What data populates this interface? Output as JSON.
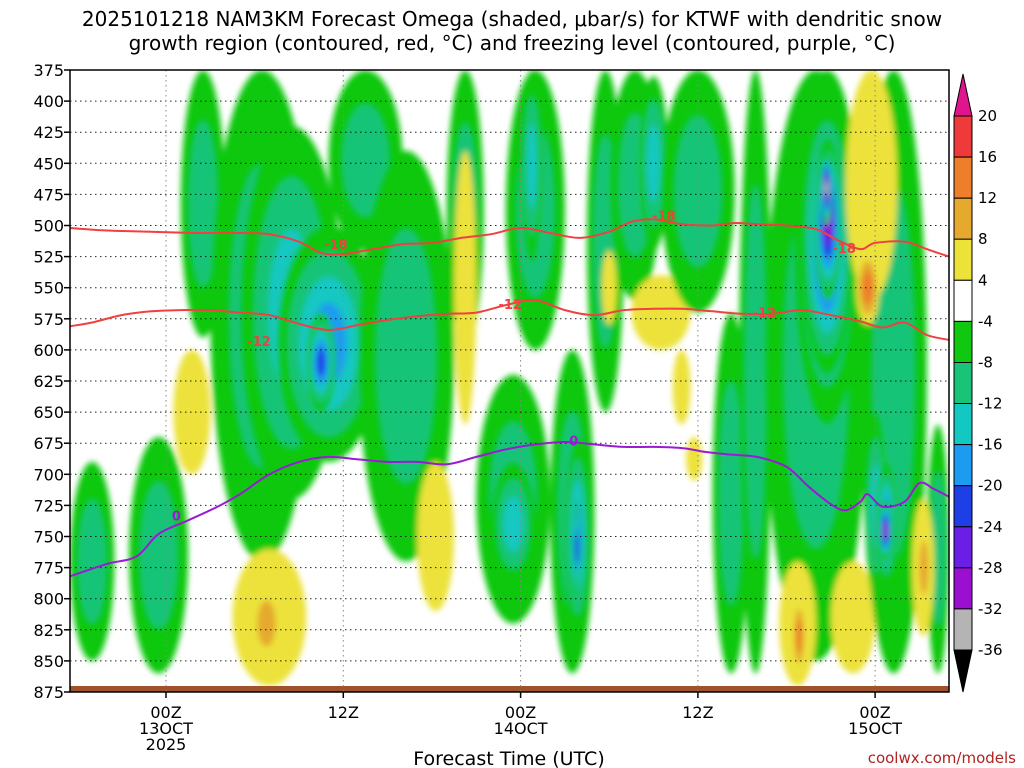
{
  "chart_data": {
    "type": "heatmap",
    "title_line1": "2025101218 NAM3KM Forecast Omega (shaded, μbar/s) for KTWF with dendritic snow",
    "title_line2": "growth region (contoured, red, °C) and freezing level (contoured, purple, °C)",
    "xlabel": "Forecast Time (UTC)",
    "credit": "coolwx.com/models",
    "x_range_hours": [
      -6.5,
      53
    ],
    "y_range_hpa": [
      375,
      875
    ],
    "y_ticks": [
      375,
      400,
      425,
      450,
      475,
      500,
      525,
      550,
      575,
      600,
      625,
      650,
      675,
      700,
      725,
      750,
      775,
      800,
      825,
      850,
      875
    ],
    "x_ticks": [
      {
        "hour": 0,
        "lines": [
          "00Z",
          "13OCT",
          "2025"
        ]
      },
      {
        "hour": 12,
        "lines": [
          "12Z"
        ]
      },
      {
        "hour": 24,
        "lines": [
          "00Z",
          "14OCT"
        ]
      },
      {
        "hour": 36,
        "lines": [
          "12Z"
        ]
      },
      {
        "hour": 48,
        "lines": [
          "00Z",
          "15OCT"
        ]
      }
    ],
    "colorbar": {
      "label_values": [
        20,
        16,
        12,
        8,
        4,
        -4,
        -8,
        -12,
        -16,
        -20,
        -24,
        -28,
        -32,
        -36
      ],
      "bins": [
        {
          "lo": 20,
          "hi": 24,
          "color": "#e0148c"
        },
        {
          "lo": 16,
          "hi": 20,
          "color": "#ee3a3a"
        },
        {
          "lo": 12,
          "hi": 16,
          "color": "#ed7f2a"
        },
        {
          "lo": 8,
          "hi": 12,
          "color": "#e5a92d"
        },
        {
          "lo": 4,
          "hi": 8,
          "color": "#ece23a"
        },
        {
          "lo": -4,
          "hi": 4,
          "color": "#ffffff"
        },
        {
          "lo": -8,
          "hi": -4,
          "color": "#11c811"
        },
        {
          "lo": -12,
          "hi": -8,
          "color": "#19c478"
        },
        {
          "lo": -16,
          "hi": -12,
          "color": "#13c7c2"
        },
        {
          "lo": -20,
          "hi": -16,
          "color": "#1c9cf0"
        },
        {
          "lo": -24,
          "hi": -20,
          "color": "#1e3ee6"
        },
        {
          "lo": -28,
          "hi": -24,
          "color": "#6a1ee6"
        },
        {
          "lo": -32,
          "hi": -28,
          "color": "#9b10d0"
        },
        {
          "lo": -36,
          "hi": -32,
          "color": "#b4b4b4"
        },
        {
          "lo": -40,
          "hi": -36,
          "color": "#000000"
        }
      ]
    },
    "omega_features": [
      {
        "t0": -6.5,
        "t1": -3.5,
        "p0": 690,
        "p1": 850,
        "min": -10
      },
      {
        "t0": -2.5,
        "t1": 1.5,
        "p0": 670,
        "p1": 860,
        "min": -9
      },
      {
        "t0": 0.5,
        "t1": 3,
        "p0": 600,
        "p1": 700,
        "min": 6
      },
      {
        "t0": 1,
        "t1": 4,
        "p0": 375,
        "p1": 590,
        "min": -10
      },
      {
        "t0": 3,
        "t1": 10,
        "p0": 375,
        "p1": 770,
        "min": -10
      },
      {
        "t0": 5,
        "t1": 12,
        "p0": 420,
        "p1": 720,
        "min": -13
      },
      {
        "t0": 7.5,
        "t1": 14.5,
        "p0": 500,
        "p1": 690,
        "min": -17
      },
      {
        "t0": 9.5,
        "t1": 11.5,
        "p0": 570,
        "p1": 650,
        "min": -22
      },
      {
        "t0": 11,
        "t1": 16,
        "p0": 375,
        "p1": 520,
        "min": -8
      },
      {
        "t0": 13,
        "t1": 19.5,
        "p0": 440,
        "p1": 770,
        "min": -10
      },
      {
        "t0": 4.5,
        "t1": 9.5,
        "p0": 760,
        "p1": 870,
        "min": 6
      },
      {
        "t0": 5.8,
        "t1": 7.8,
        "p0": 790,
        "p1": 850,
        "min": 10
      },
      {
        "t0": 17,
        "t1": 19.5,
        "p0": 690,
        "p1": 810,
        "min": 6
      },
      {
        "t0": 19,
        "t1": 21.5,
        "p0": 375,
        "p1": 600,
        "min": -10
      },
      {
        "t0": 19.5,
        "t1": 21,
        "p0": 440,
        "p1": 660,
        "min": 6
      },
      {
        "t0": 21,
        "t1": 26,
        "p0": 620,
        "p1": 820,
        "min": -10
      },
      {
        "t0": 22,
        "t1": 25,
        "p0": 690,
        "p1": 790,
        "min": -14
      },
      {
        "t0": 23,
        "t1": 27,
        "p0": 375,
        "p1": 600,
        "min": -10
      },
      {
        "t0": 24,
        "t1": 25.5,
        "p0": 375,
        "p1": 530,
        "min": -14
      },
      {
        "t0": 26,
        "t1": 29,
        "p0": 600,
        "p1": 860,
        "min": -10
      },
      {
        "t0": 27,
        "t1": 28.7,
        "p0": 670,
        "p1": 830,
        "min": -16
      },
      {
        "t0": 27.6,
        "t1": 28,
        "p0": 720,
        "p1": 800,
        "min": -22
      },
      {
        "t0": 28.5,
        "t1": 31,
        "p0": 375,
        "p1": 650,
        "min": -9
      },
      {
        "t0": 29.5,
        "t1": 30.5,
        "p0": 520,
        "p1": 580,
        "min": 6
      },
      {
        "t0": 30,
        "t1": 33.5,
        "p0": 375,
        "p1": 560,
        "min": -10
      },
      {
        "t0": 32,
        "t1": 34,
        "p0": 380,
        "p1": 520,
        "min": -14
      },
      {
        "t0": 31.5,
        "t1": 35.5,
        "p0": 540,
        "p1": 600,
        "min": 6
      },
      {
        "t0": 33.5,
        "t1": 38.5,
        "p0": 375,
        "p1": 570,
        "min": -9
      },
      {
        "t0": 34.3,
        "t1": 35.5,
        "p0": 600,
        "p1": 660,
        "min": 6
      },
      {
        "t0": 35.2,
        "t1": 36.3,
        "p0": 670,
        "p1": 705,
        "min": 6
      },
      {
        "t0": 37,
        "t1": 39.5,
        "p0": 570,
        "p1": 860,
        "min": -9
      },
      {
        "t0": 38.8,
        "t1": 41,
        "p0": 375,
        "p1": 860,
        "min": -10
      },
      {
        "t0": 40.5,
        "t1": 47.5,
        "p0": 375,
        "p1": 850,
        "min": -10
      },
      {
        "t0": 42.5,
        "t1": 47,
        "p0": 375,
        "p1": 660,
        "min": -17
      },
      {
        "t0": 43,
        "t1": 46.5,
        "p0": 400,
        "p1": 620,
        "min": -25
      },
      {
        "t0": 43.8,
        "t1": 45.8,
        "p0": 430,
        "p1": 560,
        "min": -30
      },
      {
        "t0": 44.3,
        "t1": 45.1,
        "p0": 440,
        "p1": 500,
        "min": -34
      },
      {
        "t0": 41.5,
        "t1": 44,
        "p0": 770,
        "p1": 870,
        "min": 6
      },
      {
        "t0": 42.4,
        "t1": 43.3,
        "p0": 800,
        "p1": 860,
        "min": 14
      },
      {
        "t0": 45,
        "t1": 48,
        "p0": 770,
        "p1": 860,
        "min": 6
      },
      {
        "t0": 47,
        "t1": 51.5,
        "p0": 375,
        "p1": 860,
        "min": -9
      },
      {
        "t0": 46,
        "t1": 49.5,
        "p0": 375,
        "p1": 560,
        "min": 6
      },
      {
        "t0": 46.7,
        "t1": 48.3,
        "p0": 520,
        "p1": 580,
        "min": 14
      },
      {
        "t0": 47.3,
        "t1": 48.8,
        "p0": 650,
        "p1": 800,
        "min": -14
      },
      {
        "t0": 48,
        "t1": 49.5,
        "p0": 690,
        "p1": 790,
        "min": -22
      },
      {
        "t0": 48.2,
        "t1": 49.2,
        "p0": 720,
        "p1": 770,
        "min": -29
      },
      {
        "t0": 51.5,
        "t1": 53,
        "p0": 660,
        "p1": 860,
        "min": -9
      },
      {
        "t0": 50.5,
        "t1": 52,
        "p0": 720,
        "p1": 830,
        "min": 6
      },
      {
        "t0": 50.8,
        "t1": 51.8,
        "p0": 740,
        "p1": 810,
        "min": 10
      }
    ],
    "dgz_minus18": [
      [
        -6.5,
        502
      ],
      [
        -4,
        504
      ],
      [
        -1,
        505
      ],
      [
        2,
        506
      ],
      [
        5,
        506
      ],
      [
        7,
        507
      ],
      [
        9,
        513
      ],
      [
        10.5,
        522
      ],
      [
        12,
        523
      ],
      [
        14,
        519
      ],
      [
        16,
        515
      ],
      [
        18,
        514
      ],
      [
        20,
        510
      ],
      [
        22,
        507
      ],
      [
        24,
        502
      ],
      [
        26,
        506
      ],
      [
        28,
        510
      ],
      [
        30,
        505
      ],
      [
        31.5,
        497
      ],
      [
        33,
        495
      ],
      [
        35,
        499
      ],
      [
        37,
        500
      ],
      [
        38.5,
        498
      ],
      [
        40,
        499
      ],
      [
        42,
        500
      ],
      [
        44,
        503
      ],
      [
        45.5,
        512
      ],
      [
        47,
        519
      ],
      [
        48,
        514
      ],
      [
        50,
        513
      ],
      [
        51.5,
        519
      ],
      [
        53,
        525
      ]
    ],
    "dgz_minus12": [
      [
        -6.5,
        581
      ],
      [
        -5,
        578
      ],
      [
        -3,
        572
      ],
      [
        -1,
        569
      ],
      [
        1,
        568
      ],
      [
        3,
        568
      ],
      [
        5,
        570
      ],
      [
        7,
        572
      ],
      [
        9,
        579
      ],
      [
        11,
        584
      ],
      [
        13,
        580
      ],
      [
        15,
        576
      ],
      [
        17,
        573
      ],
      [
        19,
        571
      ],
      [
        21,
        570
      ],
      [
        23,
        564
      ],
      [
        25,
        560
      ],
      [
        27,
        568
      ],
      [
        29,
        572
      ],
      [
        31,
        568
      ],
      [
        33,
        567
      ],
      [
        35,
        567
      ],
      [
        37,
        569
      ],
      [
        39,
        571
      ],
      [
        41,
        571
      ],
      [
        43,
        568
      ],
      [
        45,
        572
      ],
      [
        47,
        577
      ],
      [
        48.5,
        582
      ],
      [
        50,
        578
      ],
      [
        51.5,
        588
      ],
      [
        53,
        592
      ]
    ],
    "freezing_level_0": [
      [
        -6.5,
        782
      ],
      [
        -4,
        772
      ],
      [
        -2,
        766
      ],
      [
        -0.5,
        748
      ],
      [
        1.5,
        737
      ],
      [
        3.5,
        726
      ],
      [
        5,
        716
      ],
      [
        7,
        700
      ],
      [
        9,
        690
      ],
      [
        11,
        686
      ],
      [
        13,
        688
      ],
      [
        15,
        690
      ],
      [
        17,
        690
      ],
      [
        19,
        692
      ],
      [
        21,
        686
      ],
      [
        23,
        680
      ],
      [
        25,
        676
      ],
      [
        27,
        674
      ],
      [
        29,
        676
      ],
      [
        31,
        678
      ],
      [
        33,
        678
      ],
      [
        35,
        679
      ],
      [
        36.5,
        682
      ],
      [
        38,
        684
      ],
      [
        40,
        686
      ],
      [
        42,
        694
      ],
      [
        43.5,
        710
      ],
      [
        45,
        724
      ],
      [
        46,
        729
      ],
      [
        47,
        722
      ],
      [
        47.5,
        716
      ],
      [
        48.5,
        726
      ],
      [
        50,
        722
      ],
      [
        51,
        707
      ],
      [
        52,
        712
      ],
      [
        53,
        718
      ]
    ],
    "contour_labels": [
      {
        "text": "-18",
        "t": 11.5,
        "p": 515,
        "color": "#f04040"
      },
      {
        "text": "-18",
        "t": 33.7,
        "p": 492,
        "color": "#f04040"
      },
      {
        "text": "-18",
        "t": 45.9,
        "p": 518,
        "color": "#f04040"
      },
      {
        "text": "-12",
        "t": 6.3,
        "p": 593,
        "color": "#f04040"
      },
      {
        "text": "-12",
        "t": 23.3,
        "p": 563,
        "color": "#f04040"
      },
      {
        "text": "-12",
        "t": 40.5,
        "p": 570,
        "color": "#f04040"
      },
      {
        "text": "0",
        "t": 0.7,
        "p": 733,
        "color": "#9a1ad6"
      },
      {
        "text": "0",
        "t": 27.6,
        "p": 673,
        "color": "#9a1ad6"
      }
    ]
  }
}
